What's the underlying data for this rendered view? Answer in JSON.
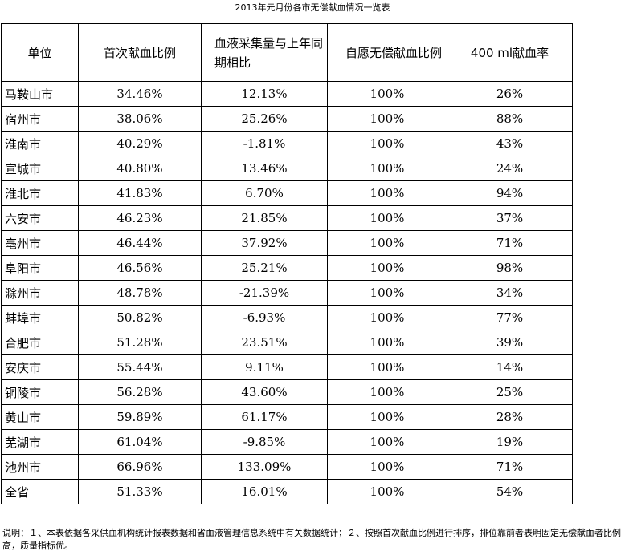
{
  "title": "2013年元月份各市无偿献血情况一览表",
  "table": {
    "headers": [
      "单位",
      "首次献血比例",
      "血液采集量与上年同期相比",
      "自愿无偿献血比例",
      "400 ml献血率"
    ],
    "rows": [
      [
        "马鞍山市",
        "34.46%",
        "12.13%",
        "100%",
        "26%"
      ],
      [
        "宿州市",
        "38.06%",
        "25.26%",
        "100%",
        "88%"
      ],
      [
        "淮南市",
        "40.29%",
        "-1.81%",
        "100%",
        "43%"
      ],
      [
        "宣城市",
        "40.80%",
        "13.46%",
        "100%",
        "24%"
      ],
      [
        "淮北市",
        "41.83%",
        "6.70%",
        "100%",
        "94%"
      ],
      [
        "六安市",
        "46.23%",
        "21.85%",
        "100%",
        "37%"
      ],
      [
        "亳州市",
        "46.44%",
        "37.92%",
        "100%",
        "71%"
      ],
      [
        "阜阳市",
        "46.56%",
        "25.21%",
        "100%",
        "98%"
      ],
      [
        "滁州市",
        "48.78%",
        "-21.39%",
        "100%",
        "34%"
      ],
      [
        "蚌埠市",
        "50.82%",
        "-6.93%",
        "100%",
        "77%"
      ],
      [
        "合肥市",
        "51.28%",
        "23.51%",
        "100%",
        "39%"
      ],
      [
        "安庆市",
        "55.44%",
        "9.11%",
        "100%",
        "14%"
      ],
      [
        "铜陵市",
        "56.28%",
        "43.60%",
        "100%",
        "25%"
      ],
      [
        "黄山市",
        "59.89%",
        "61.17%",
        "100%",
        "28%"
      ],
      [
        "芜湖市",
        "61.04%",
        "-9.85%",
        "100%",
        "19%"
      ],
      [
        "池州市",
        "66.96%",
        "133.09%",
        "100%",
        "71%"
      ],
      [
        "全省",
        "51.33%",
        "16.01%",
        "100%",
        "54%"
      ]
    ]
  },
  "note": "说明：１、本表依据各采供血机构统计报表数据和省血液管理信息系统中有关数据统计；２、按照首次献血比例进行排序，排位靠前者表明固定无偿献血者比例高，质量指标优。"
}
